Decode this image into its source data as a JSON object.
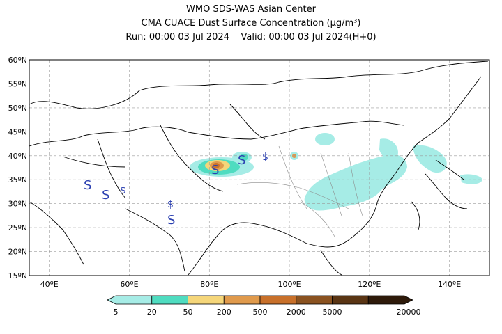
{
  "title": {
    "line1": "WMO SDS-WAS Asian Center",
    "line2": "CMA CUACE Dust Surface Concentration (μg/m³)",
    "run": "Run: 00:00 03 Jul 2024",
    "valid": "Valid: 00:00 03 Jul 2024(H+0)"
  },
  "axes": {
    "lat_labels": [
      "60ºN",
      "55ºN",
      "50ºN",
      "45ºN",
      "40ºN",
      "35ºN",
      "30ºN",
      "25ºN",
      "20ºN",
      "15ºN"
    ],
    "lon_labels": [
      "40ºE",
      "60ºE",
      "80ºE",
      "100ºE",
      "120ºE",
      "140ºE"
    ],
    "lon_range": [
      35,
      150
    ],
    "lat_range": [
      15,
      60
    ]
  },
  "colorbar": {
    "ticks": [
      "5",
      "20",
      "50",
      "200",
      "500",
      "2000",
      "5000",
      "20000"
    ],
    "colors": [
      "#a6ece6",
      "#4fdcc0",
      "#f5d67a",
      "#e09a4c",
      "#c8702a",
      "#8a5220",
      "#5a3514",
      "#2e1a0a"
    ]
  },
  "dust_symbol": "S",
  "dust_small_symbol": "$",
  "colors": {
    "grid": "#9a9a9a",
    "coast": "#000000",
    "provinces": "#8c8c8c",
    "symbol": "#2a3fb0"
  }
}
